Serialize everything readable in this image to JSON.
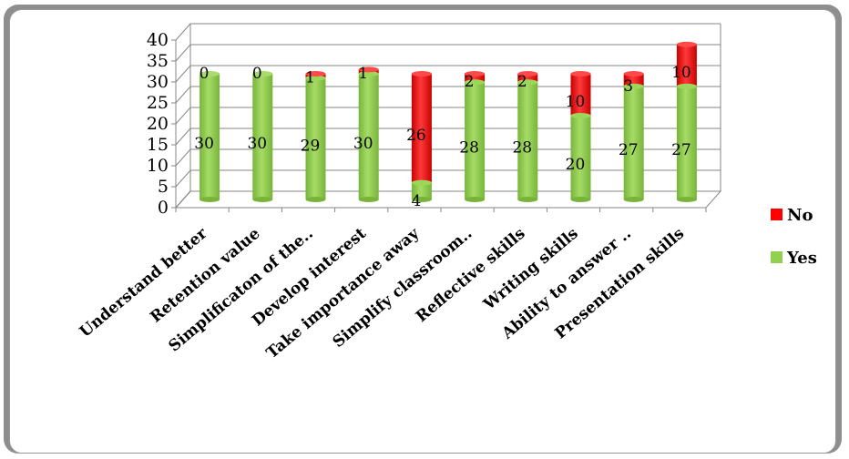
{
  "colors": {
    "yes": "#92d050",
    "no": "#ff0000",
    "grid": "#868686"
  },
  "chart_data": {
    "type": "bar",
    "stacked": true,
    "categories": [
      "Understand better",
      "Retention value",
      "Simplificaton of the..",
      "Develop interest",
      "Take importance away",
      "Simplify classroom..",
      "Reflective skills",
      "Writing skills",
      "Ability to answer ..",
      "Presentation skills"
    ],
    "series": [
      {
        "name": "Yes",
        "values": [
          30,
          30,
          29,
          30,
          4,
          28,
          28,
          20,
          27,
          27
        ]
      },
      {
        "name": "No",
        "values": [
          0,
          0,
          1,
          1,
          26,
          2,
          2,
          10,
          3,
          10
        ]
      }
    ],
    "ylim": [
      0,
      40
    ],
    "yticks": [
      0,
      5,
      10,
      15,
      20,
      25,
      30,
      35,
      40
    ],
    "grid": true,
    "legend": "right",
    "legend_order": [
      "No",
      "Yes"
    ]
  }
}
